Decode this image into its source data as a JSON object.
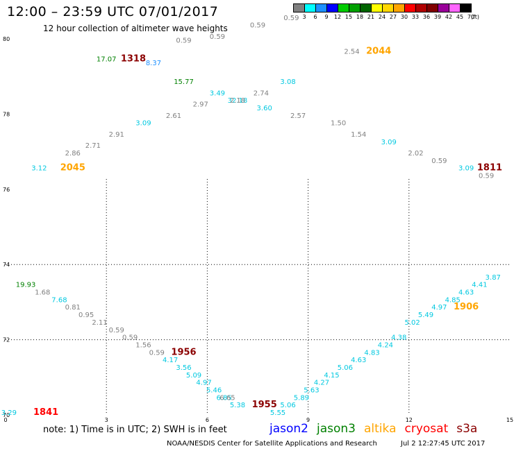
{
  "header": {
    "title": "12:00 – 23:59 UTC 07/01/2017",
    "subtitle": "12 hour collection of altimeter wave heights"
  },
  "colorbar": {
    "unit_label": "(ft)",
    "bins": [
      {
        "label": "3",
        "color": "#808080"
      },
      {
        "label": "6",
        "color": "#00ffff"
      },
      {
        "label": "9",
        "color": "#1e90ff"
      },
      {
        "label": "12",
        "color": "#0000ff"
      },
      {
        "label": "15",
        "color": "#00cc00"
      },
      {
        "label": "18",
        "color": "#00a000"
      },
      {
        "label": "21",
        "color": "#006400"
      },
      {
        "label": "24",
        "color": "#ffff00"
      },
      {
        "label": "27",
        "color": "#ffd700"
      },
      {
        "label": "30",
        "color": "#ffa500"
      },
      {
        "label": "33",
        "color": "#ff0000"
      },
      {
        "label": "36",
        "color": "#b00000"
      },
      {
        "label": "39",
        "color": "#800000"
      },
      {
        "label": "42",
        "color": "#990099"
      },
      {
        "label": "45",
        "color": "#ff66ff"
      },
      {
        "label": "70",
        "color": "#000000"
      }
    ]
  },
  "footer": {
    "note": "note: 1) Time is in UTC; 2) SWH is in feet",
    "legend": [
      {
        "name": "jason2",
        "color": "#0000ff"
      },
      {
        "name": "jason3",
        "color": "#008000"
      },
      {
        "name": "altika",
        "color": "#ffa500"
      },
      {
        "name": "cryosat",
        "color": "#ff0000"
      },
      {
        "name": "s3a",
        "color": "#8b0000"
      }
    ],
    "credit": "NOAA/NESDIS Center for Satellite Applications and Research",
    "timestamp": "Jul  2 12:27:45 UTC 2017"
  },
  "chart_data": {
    "type": "scatter",
    "x_ticks": [
      "0",
      "3",
      "6",
      "9",
      "12",
      "15"
    ],
    "y_ticks": [
      "70",
      "72",
      "74",
      "76",
      "78",
      "80"
    ],
    "xlim": [
      0,
      15
    ],
    "ylim": [
      70,
      80
    ],
    "grid": true,
    "points": [
      {
        "x": 0.1,
        "y": 70.0,
        "label": "3.29",
        "color": "#00c8e0"
      },
      {
        "x": 1.2,
        "y": 70.0,
        "label": "1841",
        "color": "#ff0000",
        "size": "big"
      },
      {
        "x": 0.6,
        "y": 73.4,
        "label": "19.93",
        "color": "#008000"
      },
      {
        "x": 1.1,
        "y": 73.2,
        "label": "1.68",
        "color": "#808080"
      },
      {
        "x": 1.6,
        "y": 73.0,
        "label": "7.68",
        "color": "#00c8e0"
      },
      {
        "x": 2.0,
        "y": 72.8,
        "label": "0.81",
        "color": "#808080"
      },
      {
        "x": 2.4,
        "y": 72.6,
        "label": "0.95",
        "color": "#808080"
      },
      {
        "x": 2.8,
        "y": 72.4,
        "label": "2.11",
        "color": "#808080"
      },
      {
        "x": 3.3,
        "y": 72.2,
        "label": "0.59",
        "color": "#808080"
      },
      {
        "x": 3.7,
        "y": 72.0,
        "label": "0.59",
        "color": "#808080"
      },
      {
        "x": 4.1,
        "y": 71.8,
        "label": "1.56",
        "color": "#808080"
      },
      {
        "x": 4.5,
        "y": 71.6,
        "label": "0.59",
        "color": "#808080"
      },
      {
        "x": 4.9,
        "y": 71.4,
        "label": "4.17",
        "color": "#00c8e0"
      },
      {
        "x": 5.3,
        "y": 71.6,
        "label": "1956",
        "color": "#8b0000",
        "size": "big"
      },
      {
        "x": 5.3,
        "y": 71.2,
        "label": "3.56",
        "color": "#00c8e0"
      },
      {
        "x": 5.6,
        "y": 71.0,
        "label": "5.09",
        "color": "#00c8e0"
      },
      {
        "x": 5.9,
        "y": 70.8,
        "label": "4.97",
        "color": "#00c8e0"
      },
      {
        "x": 6.2,
        "y": 70.6,
        "label": "5.46",
        "color": "#00c8e0"
      },
      {
        "x": 6.5,
        "y": 70.4,
        "label": "6.85",
        "color": "#00c8e0"
      },
      {
        "x": 6.6,
        "y": 70.4,
        "label": "6.65",
        "color": "#808080"
      },
      {
        "x": 6.9,
        "y": 70.2,
        "label": "5.38",
        "color": "#00c8e0"
      },
      {
        "x": 7.7,
        "y": 70.2,
        "label": "1955",
        "color": "#8b0000",
        "size": "big"
      },
      {
        "x": 8.1,
        "y": 70.0,
        "label": "5.55",
        "color": "#00c8e0"
      },
      {
        "x": 8.4,
        "y": 70.2,
        "label": "5.06",
        "color": "#00c8e0"
      },
      {
        "x": 8.8,
        "y": 70.4,
        "label": "5.89",
        "color": "#00c8e0"
      },
      {
        "x": 9.1,
        "y": 70.6,
        "label": "5.63",
        "color": "#00c8e0"
      },
      {
        "x": 9.4,
        "y": 70.8,
        "label": "4.27",
        "color": "#00c8e0"
      },
      {
        "x": 9.7,
        "y": 71.0,
        "label": "4.15",
        "color": "#00c8e0"
      },
      {
        "x": 10.1,
        "y": 71.2,
        "label": "5.06",
        "color": "#00c8e0"
      },
      {
        "x": 10.5,
        "y": 71.4,
        "label": "4.63",
        "color": "#00c8e0"
      },
      {
        "x": 10.9,
        "y": 71.6,
        "label": "4.83",
        "color": "#00c8e0"
      },
      {
        "x": 11.3,
        "y": 71.8,
        "label": "4.24",
        "color": "#00c8e0"
      },
      {
        "x": 11.7,
        "y": 72.0,
        "label": "4.38",
        "color": "#00c8e0"
      },
      {
        "x": 12.1,
        "y": 72.4,
        "label": "5.02",
        "color": "#00c8e0"
      },
      {
        "x": 12.5,
        "y": 72.6,
        "label": "5.49",
        "color": "#00c8e0"
      },
      {
        "x": 12.9,
        "y": 72.8,
        "label": "4.97",
        "color": "#00c8e0"
      },
      {
        "x": 13.3,
        "y": 73.0,
        "label": "4.85",
        "color": "#00c8e0"
      },
      {
        "x": 13.7,
        "y": 72.8,
        "label": "1906",
        "color": "#ffa500",
        "size": "big"
      },
      {
        "x": 13.7,
        "y": 73.2,
        "label": "4.63",
        "color": "#00c8e0"
      },
      {
        "x": 14.1,
        "y": 73.4,
        "label": "4.41",
        "color": "#00c8e0"
      },
      {
        "x": 14.5,
        "y": 73.6,
        "label": "3.87",
        "color": "#00c8e0"
      },
      {
        "x": 1.0,
        "y": 76.5,
        "label": "3.12",
        "color": "#00c8e0"
      },
      {
        "x": 2.0,
        "y": 76.5,
        "label": "2045",
        "color": "#ffa500",
        "size": "big"
      },
      {
        "x": 2.0,
        "y": 76.9,
        "label": "2.86",
        "color": "#808080"
      },
      {
        "x": 2.6,
        "y": 77.1,
        "label": "2.71",
        "color": "#808080"
      },
      {
        "x": 3.3,
        "y": 77.4,
        "label": "2.91",
        "color": "#808080"
      },
      {
        "x": 4.1,
        "y": 77.7,
        "label": "3.09",
        "color": "#00c8e0"
      },
      {
        "x": 5.0,
        "y": 77.9,
        "label": "2.61",
        "color": "#808080"
      },
      {
        "x": 5.8,
        "y": 78.2,
        "label": "2.97",
        "color": "#808080"
      },
      {
        "x": 6.9,
        "y": 78.3,
        "label": "32.18",
        "color": "#00c8e0"
      },
      {
        "x": 6.9,
        "y": 78.3,
        "label": "2.18",
        "color": "#808080"
      },
      {
        "x": 7.7,
        "y": 78.1,
        "label": "3.60",
        "color": "#00c8e0"
      },
      {
        "x": 7.6,
        "y": 78.5,
        "label": "2.74",
        "color": "#808080"
      },
      {
        "x": 6.3,
        "y": 78.5,
        "label": "3.49",
        "color": "#00c8e0"
      },
      {
        "x": 5.3,
        "y": 78.8,
        "label": "15.77",
        "color": "#008000"
      },
      {
        "x": 8.4,
        "y": 78.8,
        "label": "3.08",
        "color": "#00c8e0"
      },
      {
        "x": 8.7,
        "y": 77.9,
        "label": "2.57",
        "color": "#808080"
      },
      {
        "x": 9.9,
        "y": 77.7,
        "label": "1.50",
        "color": "#808080"
      },
      {
        "x": 10.5,
        "y": 77.4,
        "label": "1.54",
        "color": "#808080"
      },
      {
        "x": 11.4,
        "y": 77.2,
        "label": "3.09",
        "color": "#00c8e0"
      },
      {
        "x": 12.2,
        "y": 76.9,
        "label": "2.02",
        "color": "#808080"
      },
      {
        "x": 12.9,
        "y": 76.7,
        "label": "0.59",
        "color": "#808080"
      },
      {
        "x": 13.7,
        "y": 76.5,
        "label": "3.09",
        "color": "#00c8e0"
      },
      {
        "x": 14.3,
        "y": 76.3,
        "label": "0.59",
        "color": "#808080"
      },
      {
        "x": 14.4,
        "y": 76.5,
        "label": "1811",
        "color": "#8b0000",
        "size": "big"
      },
      {
        "x": 3.0,
        "y": 79.4,
        "label": "17.07",
        "color": "#008000"
      },
      {
        "x": 3.8,
        "y": 79.4,
        "label": "1318",
        "color": "#8b0000",
        "size": "big"
      },
      {
        "x": 4.4,
        "y": 79.3,
        "label": "8.37",
        "color": "#1e90ff"
      },
      {
        "x": 5.3,
        "y": 79.9,
        "label": "0.59",
        "color": "#808080"
      },
      {
        "x": 6.3,
        "y": 80.0,
        "label": "0.59",
        "color": "#808080"
      },
      {
        "x": 7.5,
        "y": 80.3,
        "label": "0.59",
        "color": "#808080"
      },
      {
        "x": 8.5,
        "y": 80.5,
        "label": "0.59",
        "color": "#808080"
      },
      {
        "x": 10.3,
        "y": 79.6,
        "label": "2.54",
        "color": "#808080"
      },
      {
        "x": 11.1,
        "y": 79.6,
        "label": "2044",
        "color": "#ffa500",
        "size": "big"
      }
    ]
  }
}
